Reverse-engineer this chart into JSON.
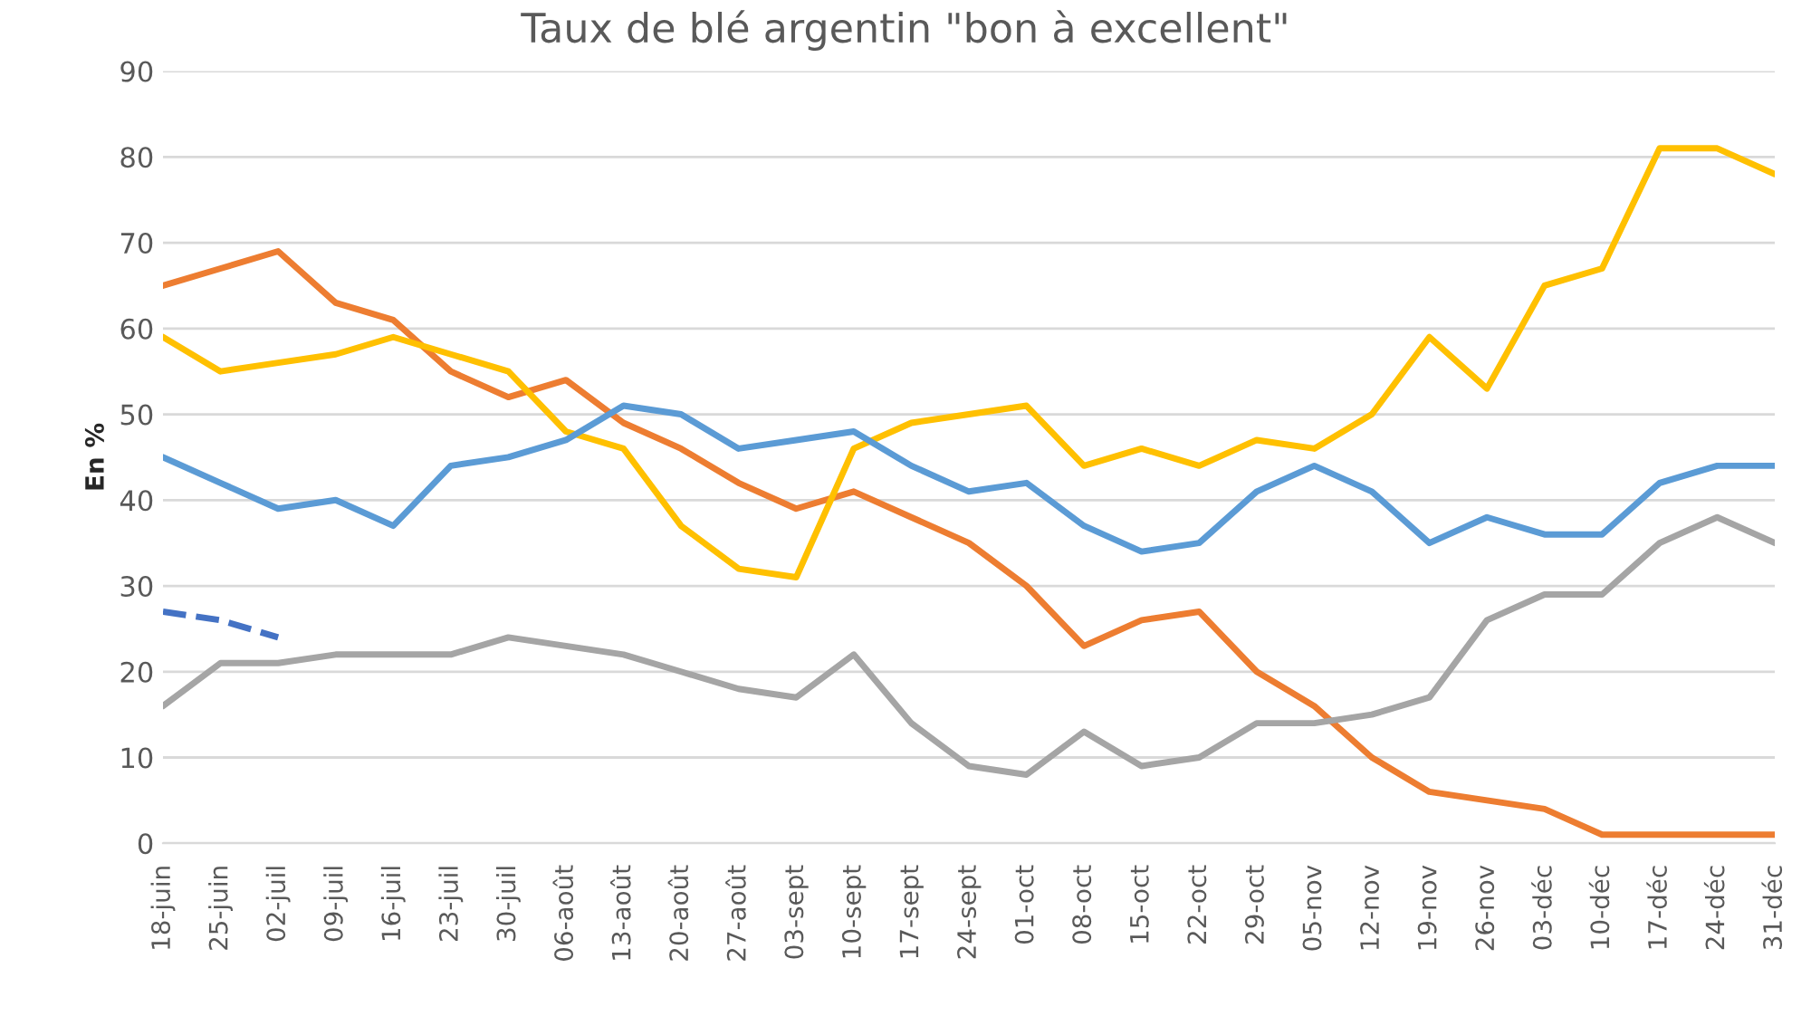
{
  "chart_data": {
    "type": "line",
    "title": "Taux de blé argentin \"bon à excellent\"",
    "ylabel": "En %",
    "categories": [
      "18-juin",
      "25-juin",
      "02-juil",
      "09-juil",
      "16-juil",
      "23-juil",
      "30-juil",
      "06-août",
      "13-août",
      "20-août",
      "27-août",
      "03-sept",
      "10-sept",
      "17-sept",
      "24-sept",
      "01-oct",
      "08-oct",
      "15-oct",
      "22-oct",
      "29-oct",
      "05-nov",
      "12-nov",
      "19-nov",
      "26-nov",
      "03-déc",
      "10-déc",
      "17-déc",
      "24-déc",
      "31-déc"
    ],
    "series": [
      {
        "color": "#ed7d31",
        "values": [
          65,
          67,
          69,
          63,
          61,
          55,
          52,
          54,
          49,
          46,
          42,
          39,
          41,
          38,
          35,
          30,
          23,
          26,
          27,
          20,
          16,
          10,
          6,
          5,
          4,
          1,
          1,
          1,
          1
        ]
      },
      {
        "color": "#ffc000",
        "values": [
          59,
          55,
          56,
          57,
          59,
          57,
          55,
          48,
          46,
          37,
          32,
          31,
          46,
          49,
          50,
          51,
          44,
          46,
          44,
          47,
          46,
          50,
          59,
          53,
          65,
          67,
          81,
          81,
          78
        ]
      },
      {
        "color": "#5b9bd5",
        "values": [
          45,
          42,
          39,
          40,
          37,
          44,
          45,
          47,
          51,
          50,
          46,
          47,
          48,
          44,
          41,
          42,
          37,
          34,
          35,
          41,
          44,
          41,
          35,
          38,
          36,
          36,
          42,
          44,
          44
        ]
      },
      {
        "color": "#a5a5a5",
        "values": [
          16,
          21,
          21,
          22,
          22,
          22,
          24,
          23,
          22,
          20,
          18,
          17,
          22,
          14,
          9,
          8,
          13,
          9,
          10,
          14,
          14,
          15,
          17,
          26,
          29,
          29,
          35,
          38,
          35
        ]
      },
      {
        "color": "#4472c4",
        "line_style": "dashed",
        "values": [
          27,
          26,
          24,
          null,
          null,
          null,
          null,
          null,
          null,
          null,
          null,
          null,
          null,
          null,
          null,
          null,
          null,
          null,
          null,
          null,
          null,
          null,
          null,
          null,
          null,
          null,
          null,
          null,
          null
        ]
      }
    ],
    "ylim": [
      0,
      90
    ],
    "yticks": [
      0,
      10,
      20,
      30,
      40,
      50,
      60,
      70,
      80,
      90
    ],
    "grid": "y",
    "marker": "none",
    "legend": false
  }
}
